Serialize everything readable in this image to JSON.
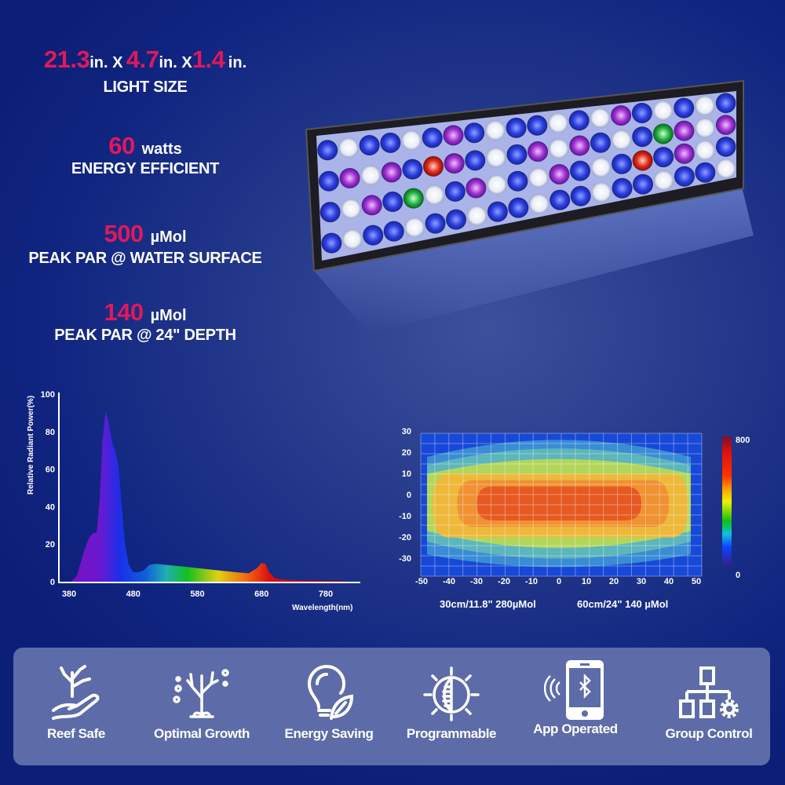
{
  "specs": {
    "size": {
      "w": "21.3",
      "w_unit": "in. X",
      "h": "4.7",
      "h_unit": "in. X",
      "d": "1.4",
      "d_unit": "in.",
      "label": "LIGHT SIZE"
    },
    "power": {
      "value": "60",
      "unit": "watts",
      "label": "ENERGY EFFICIENT"
    },
    "par_surface": {
      "value": "500",
      "unit": "µMol",
      "label": "PEAK PAR @ WATER SURFACE"
    },
    "par_depth": {
      "value": "140",
      "unit": "µMol",
      "label": "PEAK PAR @ 24\" DEPTH"
    }
  },
  "colors": {
    "accent": "#e0195a",
    "panel": "#5d6ca8"
  },
  "chart_data": [
    {
      "type": "area",
      "title": "",
      "xlabel": "Wavelength(nm)",
      "ylabel": "Relative Radiant Power(%)",
      "xlim": [
        380,
        830
      ],
      "ylim": [
        0,
        100
      ],
      "xticks": [
        "380",
        "480",
        "580",
        "680",
        "780"
      ],
      "yticks": [
        "0",
        "20",
        "40",
        "60",
        "80",
        "100"
      ],
      "x": [
        383,
        392,
        398,
        405,
        412,
        418,
        423,
        428,
        432,
        437,
        442,
        448,
        452,
        457,
        462,
        467,
        473,
        480,
        488,
        496,
        505,
        515,
        530,
        560,
        600,
        640,
        660,
        672,
        680,
        686,
        692,
        700,
        715,
        750,
        810
      ],
      "y": [
        0,
        3,
        10,
        18,
        24,
        26,
        26,
        45,
        75,
        91,
        84,
        73,
        70,
        62,
        40,
        20,
        9,
        5,
        5,
        6,
        9,
        9.5,
        9,
        8,
        6.5,
        5,
        4.5,
        7,
        10,
        9.5,
        5,
        2,
        1,
        0.5,
        0.3
      ]
    },
    {
      "type": "heatmap",
      "xlim": [
        -50,
        50
      ],
      "ylim": [
        -30,
        30
      ],
      "xticks": [
        "-50",
        "-40",
        "-30",
        "-20",
        "-10",
        "0",
        "10",
        "20",
        "30",
        "40",
        "50"
      ],
      "yticks": [
        "30",
        "20",
        "10",
        "0",
        "-10",
        "-20",
        "-30"
      ],
      "colorbar": {
        "min": "0",
        "max": "800"
      },
      "contours": [
        {
          "color": "#3a8cd4",
          "x": [
            -48,
            48
          ],
          "top": [
            20,
            28
          ],
          "bottom": [
            -26,
            -32
          ]
        },
        {
          "color": "#5cb6bc",
          "x": [
            -48,
            48
          ],
          "top": [
            16,
            24
          ],
          "bottom": [
            -20,
            -28
          ]
        },
        {
          "color": "#b2d65c",
          "x": [
            -48,
            48
          ],
          "top": [
            12,
            19
          ],
          "bottom": [
            -15,
            -23
          ]
        },
        {
          "color": "#eeb83a",
          "x": [
            -46,
            47
          ],
          "top": [
            12,
            12
          ],
          "bottom": [
            -18,
            -18
          ]
        },
        {
          "color": "#f09132",
          "x": [
            -37,
            40
          ],
          "top": [
            9,
            9
          ],
          "bottom": [
            -13,
            -13
          ]
        },
        {
          "color": "#e65a22",
          "x": [
            -30,
            30
          ],
          "top": [
            6,
            6
          ],
          "bottom": [
            -10,
            -10
          ]
        }
      ],
      "captions": [
        "30cm/11.8\"   280µMol",
        "60cm/24\"   140 µMol"
      ]
    }
  ],
  "features": [
    {
      "label": "Reef Safe",
      "icon": "coral-hand-icon"
    },
    {
      "label": "Optimal Growth",
      "icon": "coral-growth-icon"
    },
    {
      "label": "Energy Saving",
      "icon": "bulb-leaf-icon"
    },
    {
      "label": "Programmable",
      "icon": "sun-dial-icon"
    },
    {
      "label": "App Operated",
      "icon": "bluetooth-phone-icon"
    },
    {
      "label": "Group Control",
      "icon": "network-gear-icon"
    }
  ]
}
